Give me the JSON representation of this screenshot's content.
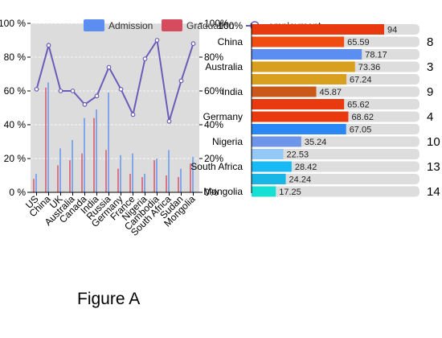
{
  "figure_label": "Figure A",
  "colors": {
    "admission": "#5b8ef0",
    "graduation": "#d64b5e",
    "employment": "#6a5cb8",
    "panel_bg": "#dcdcdc"
  },
  "legend": {
    "admission": "Admission",
    "graduation": "Graduation",
    "employment": "employment"
  },
  "chart_data": [
    {
      "type": "bar",
      "categories": [
        "US",
        "China",
        "UK",
        "Australia",
        "Canada",
        "India",
        "Russia",
        "Germany",
        "France",
        "Nigeria",
        "Cambodia",
        "South Africa",
        "Sudan",
        "Mongolia"
      ],
      "series": [
        {
          "name": "Admission",
          "axis": "left",
          "values": [
            11,
            65,
            26,
            31,
            44,
            49,
            59,
            22,
            23,
            11,
            20,
            25,
            14,
            21
          ]
        },
        {
          "name": "Graduation",
          "axis": "left",
          "values": [
            8,
            62,
            16,
            19,
            23,
            44,
            25,
            14,
            11,
            9,
            19,
            10,
            9,
            17
          ]
        },
        {
          "name": "employment",
          "type": "line",
          "axis": "right",
          "values": [
            61,
            87,
            60,
            60,
            52,
            57,
            74,
            61,
            46,
            79,
            90,
            42,
            66,
            88
          ]
        }
      ],
      "y_left": {
        "ylim": [
          0,
          100
        ],
        "ticks": [
          "0 %",
          "20 %",
          "40 %",
          "60 %",
          "80 %",
          "100 %"
        ]
      },
      "y_right": {
        "ylim": [
          0,
          100
        ],
        "ticks": [
          "0%",
          "20%",
          "40%",
          "60%",
          "80%",
          "100%"
        ]
      },
      "legend_position": "top"
    },
    {
      "type": "bar",
      "orientation": "horizontal",
      "values": [
        94,
        65.59,
        78.17,
        73.36,
        67.24,
        45.87,
        65.62,
        68.62,
        67.05,
        35.24,
        22.53,
        28.42,
        24.24,
        17.25
      ],
      "value_labels": [
        "94",
        "65.59",
        "78.17",
        "73.36",
        "67.24",
        "45.87",
        "65.62",
        "68.62",
        "67.05",
        "35.24",
        "22.53",
        "28.42",
        "24.24",
        "17.25"
      ],
      "colors": [
        "#e83a0e",
        "#f04d12",
        "#5b8ef0",
        "#d9a020",
        "#d9a020",
        "#c9581a",
        "#e83a0e",
        "#e83a0e",
        "#2a88f5",
        "#6d96e8",
        "#93c8f7",
        "#18baf3",
        "#18b6e5",
        "#16e0d4"
      ],
      "row_labels": [
        "China",
        "Australia",
        "India",
        "Germany",
        "Nigeria",
        "South Africa",
        "Mongolia"
      ],
      "ranks": [
        "8",
        "3",
        "9",
        "4",
        "10",
        "13",
        "14"
      ],
      "top_tick": "100%",
      "xlim": [
        0,
        100
      ]
    }
  ]
}
